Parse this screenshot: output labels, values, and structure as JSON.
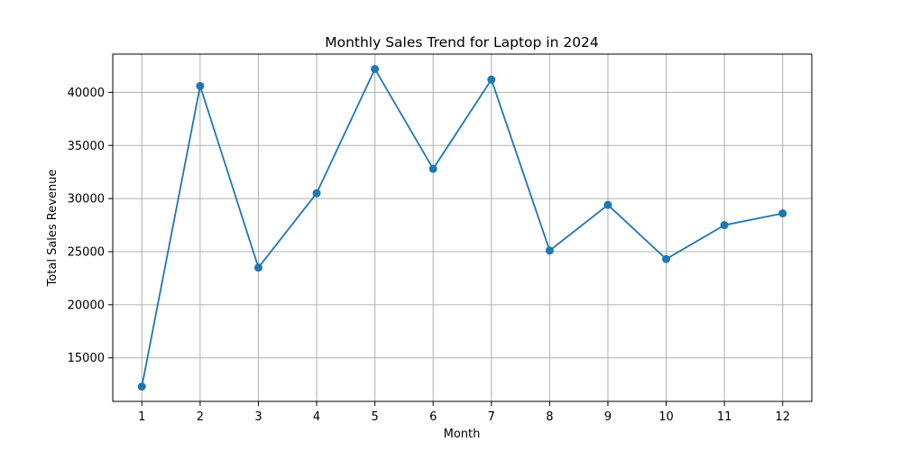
{
  "chart_data": {
    "type": "line",
    "title": "Monthly Sales Trend for Laptop in 2024",
    "xlabel": "Month",
    "ylabel": "Total Sales Revenue",
    "x": [
      1,
      2,
      3,
      4,
      5,
      6,
      7,
      8,
      9,
      10,
      11,
      12
    ],
    "series": [
      {
        "values": [
          12300,
          40600,
          23500,
          30500,
          42200,
          32800,
          41200,
          25100,
          29400,
          24300,
          27500,
          28600
        ],
        "color": "#1f77b4",
        "marker": "circle"
      }
    ],
    "xlim": [
      0.5,
      12.5
    ],
    "ylim": [
      10900,
      43600
    ],
    "xticks": [
      1,
      2,
      3,
      4,
      5,
      6,
      7,
      8,
      9,
      10,
      11,
      12
    ],
    "yticks": [
      15000,
      20000,
      25000,
      30000,
      35000,
      40000
    ],
    "grid": true,
    "grid_color": "#b0b0b0"
  }
}
